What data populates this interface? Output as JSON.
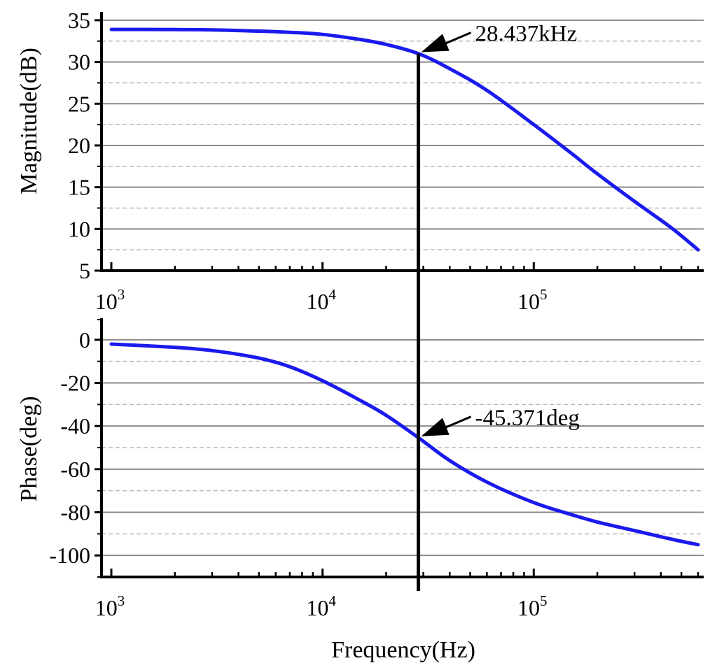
{
  "chart_data": [
    {
      "type": "line",
      "panel": "magnitude",
      "ylabel": "Magnitude(dB)",
      "xscale": "log",
      "xlim": [
        1000,
        600000
      ],
      "ylim": [
        5,
        36
      ],
      "yticks": [
        "5",
        "10",
        "15",
        "20",
        "25",
        "30",
        "35"
      ],
      "ytick_values": [
        5,
        10,
        15,
        20,
        25,
        30,
        35
      ],
      "xticks": [
        1000,
        10000,
        100000
      ],
      "xtick_labels": [
        {
          "base": "10",
          "exp": "3"
        },
        {
          "base": "10",
          "exp": "4"
        },
        {
          "base": "10",
          "exp": "5"
        }
      ],
      "grid": {
        "major": true,
        "minor_dashed": true
      },
      "series": [
        {
          "color": "#1a1aee",
          "x": [
            1000,
            2000,
            3000,
            5000,
            7000,
            10000,
            15000,
            20000,
            28437,
            40000,
            60000,
            100000,
            150000,
            200000,
            300000,
            450000,
            600000
          ],
          "y": [
            33.9,
            33.88,
            33.85,
            33.7,
            33.55,
            33.3,
            32.7,
            32.1,
            31.0,
            29.2,
            26.6,
            22.5,
            19.1,
            16.6,
            13.3,
            10.1,
            7.5
          ]
        }
      ],
      "marker": {
        "x": 28437,
        "y": 31.0,
        "label": "28.437kHz"
      }
    },
    {
      "type": "line",
      "panel": "phase",
      "ylabel": "Phase(deg)",
      "xlabel": "Frequency(Hz)",
      "xscale": "log",
      "xlim": [
        1000,
        600000
      ],
      "ylim": [
        -110,
        10
      ],
      "yticks": [
        "0",
        "-20",
        "-40",
        "-60",
        "-80",
        "-100"
      ],
      "ytick_values": [
        0,
        -20,
        -40,
        -60,
        -80,
        -100
      ],
      "xticks": [
        1000,
        10000,
        100000
      ],
      "xtick_labels": [
        {
          "base": "10",
          "exp": "3"
        },
        {
          "base": "10",
          "exp": "4"
        },
        {
          "base": "10",
          "exp": "5"
        }
      ],
      "grid": {
        "major": true,
        "minor_dashed": true
      },
      "series": [
        {
          "color": "#1a1aee",
          "x": [
            1000,
            2000,
            3000,
            5000,
            7000,
            10000,
            15000,
            20000,
            28437,
            40000,
            60000,
            100000,
            150000,
            200000,
            300000,
            450000,
            600000
          ],
          "y": [
            -2,
            -3.5,
            -5,
            -8.5,
            -12.5,
            -19,
            -28,
            -35,
            -45.4,
            -56,
            -66,
            -75.5,
            -81,
            -84.5,
            -88.5,
            -92.5,
            -95
          ]
        }
      ],
      "marker": {
        "x": 28437,
        "y": -45.4,
        "label": "-45.371deg"
      }
    }
  ]
}
